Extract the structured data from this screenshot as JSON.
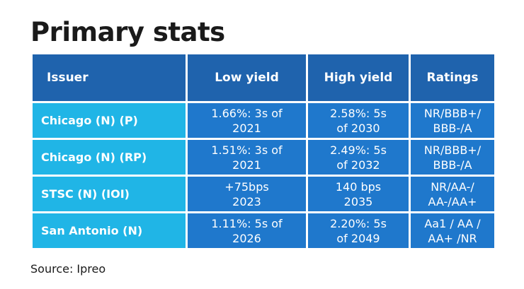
{
  "title": "Primary stats",
  "headers": [
    "Issuer",
    "Low yield",
    "High yield",
    "Ratings"
  ],
  "rows": [
    {
      "issuer": "Chicago (N) (P)",
      "low1": "1.66%: 3s of",
      "low2": "2021",
      "high1": "2.58%: 5s",
      "high2": "of 2030",
      "rat1": "NR/BBB+/",
      "rat2": "BBB-/A"
    },
    {
      "issuer": "Chicago (N) (RP)",
      "low1": "1.51%: 3s of",
      "low2": "2021",
      "high1": "2.49%: 5s",
      "high2": "of 2032",
      "rat1": "NR/BBB+/",
      "rat2": "BBB-/A"
    },
    {
      "issuer": "STSC (N) (IOI)",
      "low1": "+75bps",
      "low2": "2023",
      "high1": "140 bps",
      "high2": "2035",
      "rat1": "NR/AA-/",
      "rat2": "AA-/AA+"
    },
    {
      "issuer": "San Antonio (N)",
      "low1": "1.11%: 5s of",
      "low2": "2026",
      "high1": "2.20%: 5s",
      "high2": "of 2049",
      "rat1": "Aa1 / AA /",
      "rat2": "AA+ /NR"
    }
  ],
  "source": "Source: Ipreo",
  "colors": {
    "header": "#1f63ad",
    "issuer_cell": "#20b5e6",
    "value_cell": "#1f78cc"
  }
}
